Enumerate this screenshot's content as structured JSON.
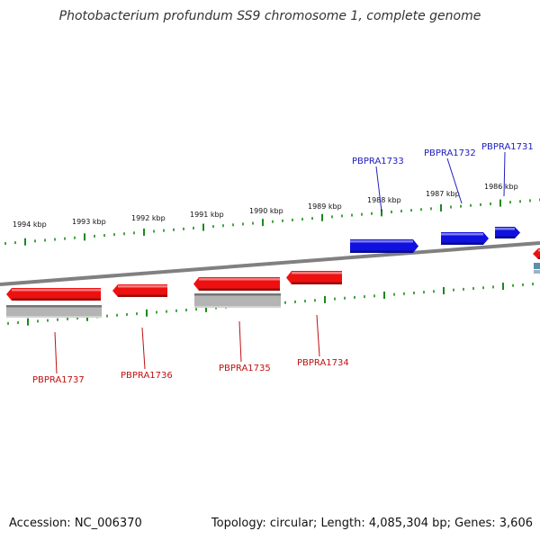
{
  "title": "Photobacterium profundum SS9 chromosome 1, complete genome",
  "footer": {
    "accession": "Accession: NC_006370",
    "summary": "Topology: circular; Length: 4,085,304 bp; Genes: 3,606"
  },
  "colors": {
    "forward_gene": "#1010e0",
    "reverse_gene": "#ee1010",
    "pseudo_gene": "#b4b4b4",
    "backbone": "#808080",
    "tick": "#1a8a1a",
    "forward_label": "#2020c0",
    "reverse_label": "#c01010"
  },
  "ticks": [
    "1994 kbp",
    "1993 kbp",
    "1992 kbp",
    "1991 kbp",
    "1990 kbp",
    "1989 kbp",
    "1988 kbp",
    "1987 kbp",
    "1986 kbp"
  ],
  "genes": [
    {
      "label": "PBPRA1731",
      "strand": "forward"
    },
    {
      "label": "PBPRA1732",
      "strand": "forward"
    },
    {
      "label": "PBPRA1733",
      "strand": "forward"
    },
    {
      "label": "PBPRA1734",
      "strand": "reverse"
    },
    {
      "label": "PBPRA1735",
      "strand": "reverse"
    },
    {
      "label": "PBPRA1736",
      "strand": "reverse"
    },
    {
      "label": "PBPRA1737",
      "strand": "reverse"
    }
  ]
}
